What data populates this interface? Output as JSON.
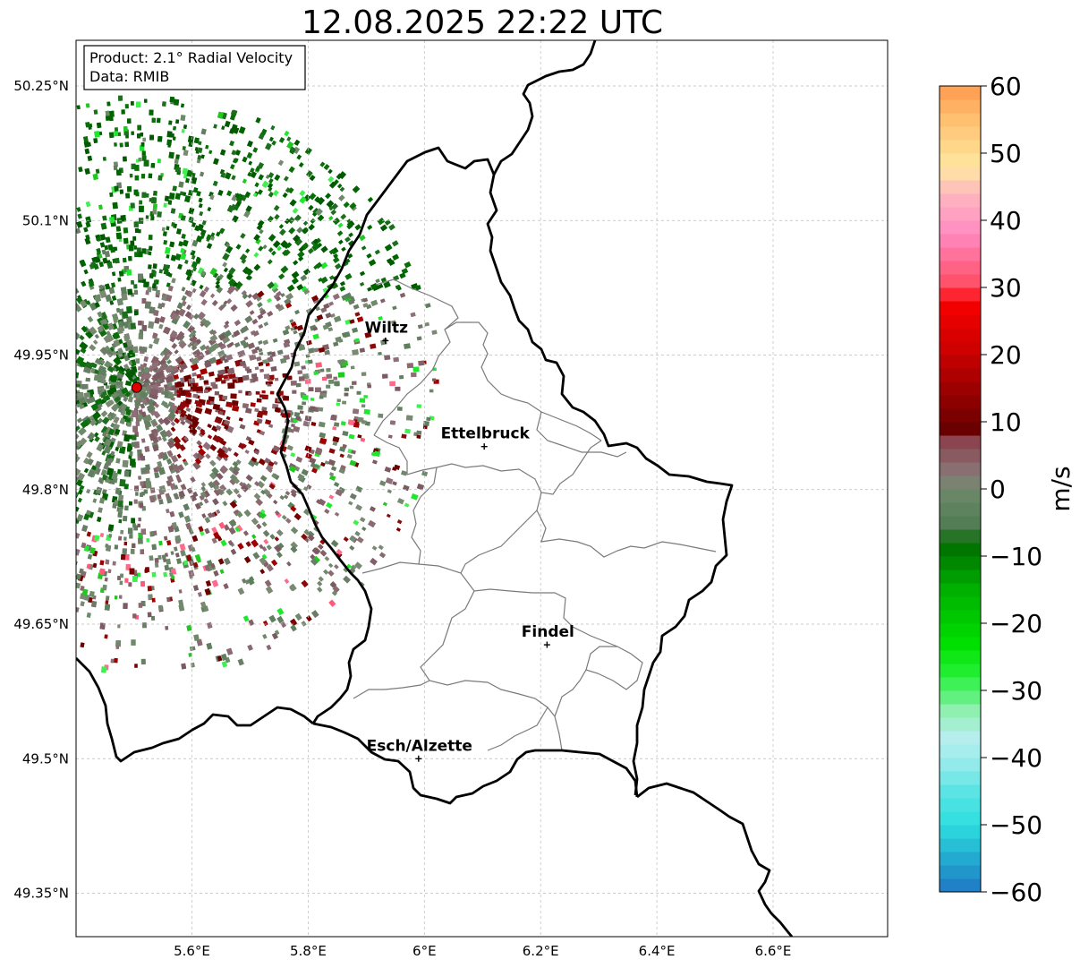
{
  "title": "12.08.2025 22:22 UTC",
  "info_box": {
    "product": "Product: 2.1° Radial Velocity",
    "source": "Data: RMIB"
  },
  "map": {
    "lon_range": [
      5.4,
      6.8
    ],
    "lat_range": [
      49.3,
      50.3
    ],
    "lat_ticks": [
      {
        "value": 50.25,
        "label": "50.25°N"
      },
      {
        "value": 50.1,
        "label": "50.1°N"
      },
      {
        "value": 49.95,
        "label": "49.95°N"
      },
      {
        "value": 49.8,
        "label": "49.8°N"
      },
      {
        "value": 49.65,
        "label": "49.65°N"
      },
      {
        "value": 49.5,
        "label": "49.5°N"
      },
      {
        "value": 49.35,
        "label": "49.35°N"
      }
    ],
    "lon_ticks": [
      {
        "value": 5.6,
        "label": "5.6°E"
      },
      {
        "value": 5.8,
        "label": "5.8°E"
      },
      {
        "value": 6.0,
        "label": "6°E"
      },
      {
        "value": 6.2,
        "label": "6.2°E"
      },
      {
        "value": 6.4,
        "label": "6.4°E"
      },
      {
        "value": 6.6,
        "label": "6.6°E"
      }
    ],
    "radar_site": {
      "lon": 5.505,
      "lat": 49.914
    },
    "cities": [
      {
        "name": "Wiltz",
        "lon": 5.933,
        "lat": 49.966
      },
      {
        "name": "Ettelbruck",
        "lon": 6.103,
        "lat": 49.848
      },
      {
        "name": "Findel",
        "lon": 6.211,
        "lat": 49.627
      },
      {
        "name": "Esch/Alzette",
        "lon": 5.99,
        "lat": 49.5
      }
    ]
  },
  "colorbar": {
    "label": "m/s",
    "min": -60,
    "max": 60,
    "ticks": [
      {
        "value": 60,
        "label": "60"
      },
      {
        "value": 50,
        "label": "50"
      },
      {
        "value": 40,
        "label": "40"
      },
      {
        "value": 30,
        "label": "30"
      },
      {
        "value": 20,
        "label": "20"
      },
      {
        "value": 10,
        "label": "10"
      },
      {
        "value": 0,
        "label": "0"
      },
      {
        "value": -10,
        "label": "−10"
      },
      {
        "value": -20,
        "label": "−20"
      },
      {
        "value": -30,
        "label": "−30"
      },
      {
        "value": -40,
        "label": "−40"
      },
      {
        "value": -50,
        "label": "−50"
      },
      {
        "value": -60,
        "label": "−60"
      }
    ],
    "stops": [
      {
        "value": -60,
        "color": "#1f77c4"
      },
      {
        "value": -55,
        "color": "#23aad0"
      },
      {
        "value": -50,
        "color": "#2ddfdf"
      },
      {
        "value": -45,
        "color": "#5ce4e4"
      },
      {
        "value": -40,
        "color": "#a0ecec"
      },
      {
        "value": -37,
        "color": "#b6eeee"
      },
      {
        "value": -33,
        "color": "#8ff0b0"
      },
      {
        "value": -30,
        "color": "#4cf26a"
      },
      {
        "value": -27,
        "color": "#1eee2e"
      },
      {
        "value": -23,
        "color": "#00e000"
      },
      {
        "value": -15,
        "color": "#00b000"
      },
      {
        "value": -8,
        "color": "#006c00"
      },
      {
        "value": -6,
        "color": "#4e7a50"
      },
      {
        "value": 0,
        "color": "#6e8a6a"
      },
      {
        "value": 2,
        "color": "#897a7a"
      },
      {
        "value": 8,
        "color": "#8a3a48"
      },
      {
        "value": 9,
        "color": "#6a0000"
      },
      {
        "value": 20,
        "color": "#c80000"
      },
      {
        "value": 28,
        "color": "#f80000"
      },
      {
        "value": 30,
        "color": "#ff4a60"
      },
      {
        "value": 38,
        "color": "#ff8ac0"
      },
      {
        "value": 44,
        "color": "#ffb8c0"
      },
      {
        "value": 48,
        "color": "#ffe8a0"
      },
      {
        "value": 55,
        "color": "#ffc070"
      },
      {
        "value": 60,
        "color": "#ff9a50"
      }
    ]
  },
  "colors": {
    "border": "#000000",
    "canton": "#7a7a7a",
    "grid": "#bbbbbb",
    "radar_marker": "#e00000"
  }
}
